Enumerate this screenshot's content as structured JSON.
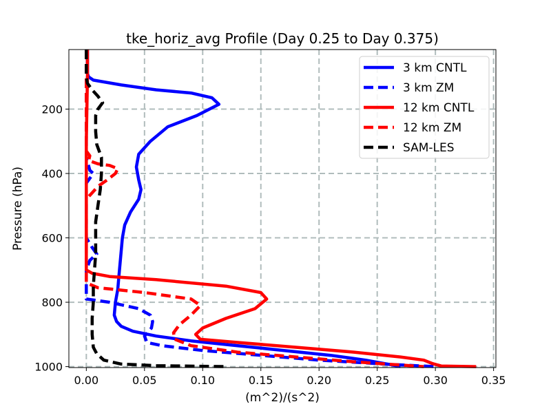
{
  "chart_data": {
    "type": "line",
    "title": "tke_horiz_avg Profile (Day 0.25 to Day 0.375)",
    "xlabel": "(m^2)/(s^2)",
    "ylabel": "Pressure (hPa)",
    "xlim": [
      -0.015,
      0.352
    ],
    "ylim": [
      1003,
      15
    ],
    "y_inverted": true,
    "grid": true,
    "legend_position": "top-right",
    "xticks": [
      "0.00",
      "0.05",
      "0.10",
      "0.15",
      "0.20",
      "0.25",
      "0.30",
      "0.35"
    ],
    "yticks": [
      "200",
      "400",
      "600",
      "800",
      "1000"
    ],
    "series": [
      {
        "name": "3 km CNTL",
        "color": "#0000ff",
        "dash": "solid",
        "points": [
          [
            0.001,
            15
          ],
          [
            0.001,
            90
          ],
          [
            0.002,
            100
          ],
          [
            0.006,
            110
          ],
          [
            0.03,
            125
          ],
          [
            0.06,
            140
          ],
          [
            0.09,
            150
          ],
          [
            0.108,
            165
          ],
          [
            0.114,
            185
          ],
          [
            0.095,
            220
          ],
          [
            0.07,
            255
          ],
          [
            0.055,
            300
          ],
          [
            0.045,
            340
          ],
          [
            0.043,
            380
          ],
          [
            0.045,
            420
          ],
          [
            0.047,
            450
          ],
          [
            0.045,
            480
          ],
          [
            0.038,
            520
          ],
          [
            0.033,
            560
          ],
          [
            0.031,
            600
          ],
          [
            0.03,
            640
          ],
          [
            0.029,
            680
          ],
          [
            0.028,
            720
          ],
          [
            0.027,
            760
          ],
          [
            0.025,
            800
          ],
          [
            0.024,
            840
          ],
          [
            0.026,
            860
          ],
          [
            0.03,
            875
          ],
          [
            0.04,
            890
          ],
          [
            0.06,
            905
          ],
          [
            0.09,
            920
          ],
          [
            0.13,
            935
          ],
          [
            0.17,
            950
          ],
          [
            0.21,
            965
          ],
          [
            0.24,
            980
          ],
          [
            0.26,
            993
          ],
          [
            0.27,
            1000
          ]
        ]
      },
      {
        "name": "3 km ZM",
        "color": "#0000ff",
        "dash": "dashed",
        "points": [
          [
            0.0,
            15
          ],
          [
            0.0,
            350
          ],
          [
            0.003,
            390
          ],
          [
            0.006,
            400
          ],
          [
            0.003,
            415
          ],
          [
            0.0,
            430
          ],
          [
            0.0,
            600
          ],
          [
            0.005,
            630
          ],
          [
            0.009,
            650
          ],
          [
            0.003,
            670
          ],
          [
            0.0,
            700
          ],
          [
            0.0,
            790
          ],
          [
            0.02,
            800
          ],
          [
            0.045,
            820
          ],
          [
            0.055,
            840
          ],
          [
            0.057,
            860
          ],
          [
            0.056,
            880
          ],
          [
            0.05,
            905
          ],
          [
            0.052,
            925
          ],
          [
            0.065,
            935
          ],
          [
            0.1,
            950
          ],
          [
            0.15,
            965
          ],
          [
            0.2,
            980
          ],
          [
            0.26,
            993
          ],
          [
            0.3,
            1000
          ]
        ]
      },
      {
        "name": "12 km CNTL",
        "color": "#ff0000",
        "dash": "solid",
        "points": [
          [
            0.001,
            15
          ],
          [
            0.001,
            100
          ],
          [
            0.0,
            300
          ],
          [
            0.0,
            700
          ],
          [
            0.005,
            710
          ],
          [
            0.02,
            720
          ],
          [
            0.06,
            730
          ],
          [
            0.12,
            750
          ],
          [
            0.15,
            770
          ],
          [
            0.155,
            790
          ],
          [
            0.145,
            820
          ],
          [
            0.12,
            850
          ],
          [
            0.1,
            880
          ],
          [
            0.094,
            900
          ],
          [
            0.098,
            915
          ],
          [
            0.13,
            925
          ],
          [
            0.18,
            940
          ],
          [
            0.23,
            955
          ],
          [
            0.27,
            970
          ],
          [
            0.29,
            980
          ],
          [
            0.297,
            990
          ],
          [
            0.305,
            998
          ],
          [
            0.335,
            1000
          ]
        ]
      },
      {
        "name": "12 km ZM",
        "color": "#ff0000",
        "dash": "dashed",
        "points": [
          [
            0.0,
            15
          ],
          [
            0.0,
            330
          ],
          [
            0.003,
            345
          ],
          [
            0.002,
            360
          ],
          [
            0.01,
            370
          ],
          [
            0.02,
            375
          ],
          [
            0.027,
            385
          ],
          [
            0.025,
            400
          ],
          [
            0.018,
            420
          ],
          [
            0.01,
            440
          ],
          [
            0.005,
            460
          ],
          [
            0.0,
            480
          ],
          [
            0.0,
            740
          ],
          [
            0.01,
            755
          ],
          [
            0.05,
            770
          ],
          [
            0.09,
            790
          ],
          [
            0.098,
            810
          ],
          [
            0.09,
            840
          ],
          [
            0.08,
            870
          ],
          [
            0.075,
            895
          ],
          [
            0.076,
            915
          ],
          [
            0.09,
            935
          ],
          [
            0.13,
            955
          ],
          [
            0.18,
            970
          ],
          [
            0.23,
            985
          ],
          [
            0.27,
            995
          ],
          [
            0.29,
            1000
          ]
        ]
      },
      {
        "name": "SAM-LES",
        "color": "#000000",
        "dash": "dashed",
        "points": [
          [
            0.0,
            15
          ],
          [
            0.0,
            100
          ],
          [
            0.001,
            120
          ],
          [
            0.005,
            140
          ],
          [
            0.01,
            160
          ],
          [
            0.014,
            180
          ],
          [
            0.01,
            200
          ],
          [
            0.008,
            220
          ],
          [
            0.008,
            270
          ],
          [
            0.009,
            310
          ],
          [
            0.013,
            350
          ],
          [
            0.013,
            400
          ],
          [
            0.012,
            450
          ],
          [
            0.01,
            500
          ],
          [
            0.008,
            550
          ],
          [
            0.008,
            600
          ],
          [
            0.008,
            650
          ],
          [
            0.007,
            700
          ],
          [
            0.006,
            750
          ],
          [
            0.006,
            800
          ],
          [
            0.005,
            850
          ],
          [
            0.005,
            900
          ],
          [
            0.006,
            940
          ],
          [
            0.009,
            960
          ],
          [
            0.015,
            980
          ],
          [
            0.03,
            992
          ],
          [
            0.06,
            997
          ],
          [
            0.12,
            1000
          ]
        ]
      }
    ]
  }
}
